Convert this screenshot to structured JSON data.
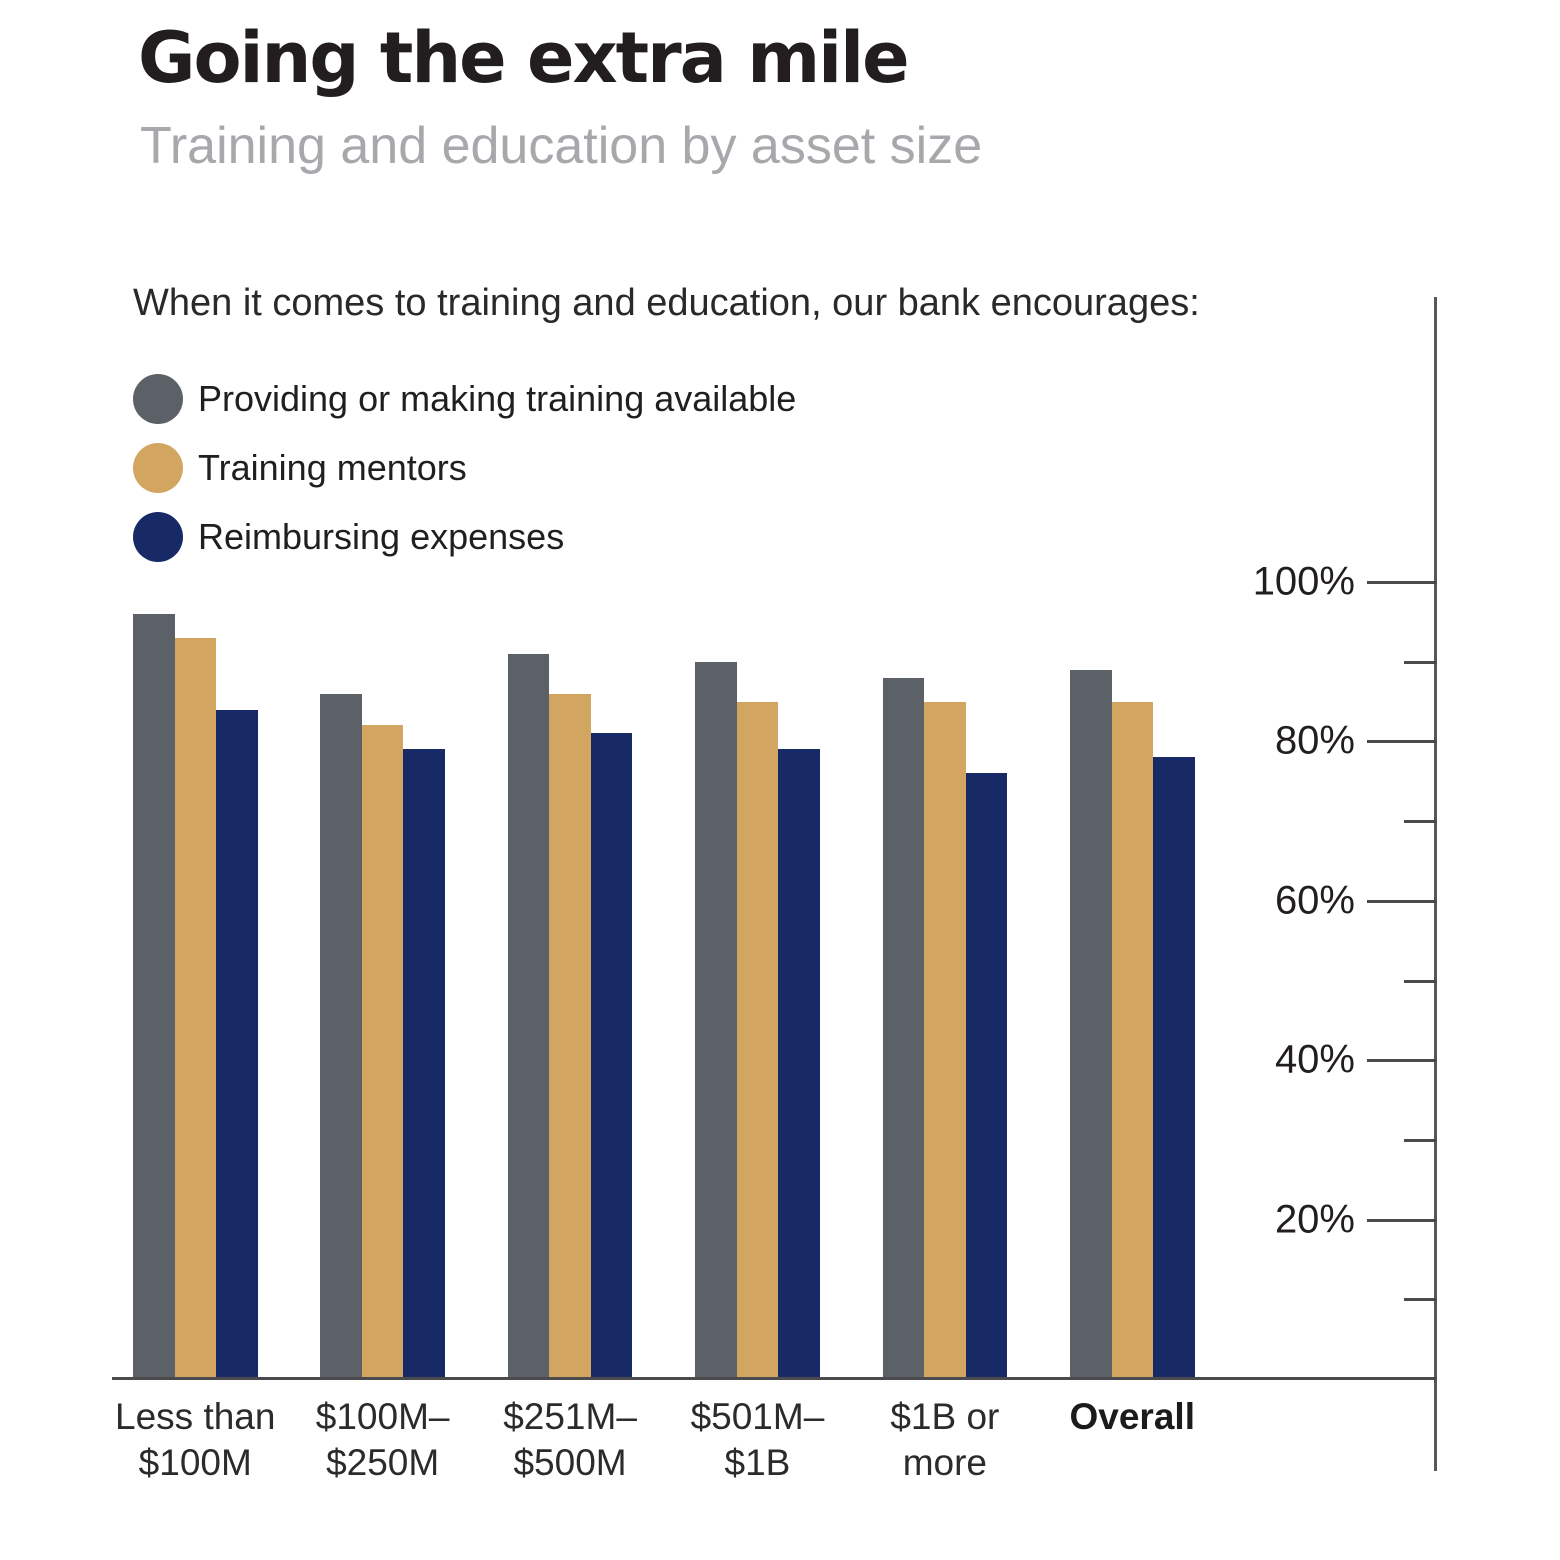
{
  "header": {
    "title": "Going the extra mile",
    "subtitle": "Training and education by asset size"
  },
  "intro": "When it comes to training and education, our bank encourages:",
  "legend": [
    {
      "label": "Providing or making training available",
      "color": "#5c6067"
    },
    {
      "label": "Training mentors",
      "color": "#d2a660"
    },
    {
      "label": "Reimbursing expenses",
      "color": "#172a66"
    }
  ],
  "colors": {
    "axis": "#57585a",
    "tick": "#4b4b4d",
    "tick_label": "#221e1f",
    "title": "#221e1f",
    "subtitle": "#a6a8ab"
  },
  "chart_data": {
    "type": "bar",
    "title": "Going the extra mile",
    "subtitle": "Training and education by asset size",
    "annotation": "When it comes to training and education, our bank encourages:",
    "categories": [
      "Less than $100M",
      "$100M–$250M",
      "$251M–$500M",
      "$501M–$1B",
      "$1B or more",
      "Overall"
    ],
    "category_lines": [
      [
        "Less than",
        "$100M"
      ],
      [
        "$100M–",
        "$250M"
      ],
      [
        "$251M–",
        "$500M"
      ],
      [
        "$501M–",
        "$1B"
      ],
      [
        "$1B or",
        "more"
      ],
      [
        "Overall"
      ]
    ],
    "category_bold": [
      false,
      false,
      false,
      false,
      false,
      true
    ],
    "series": [
      {
        "key": "providing",
        "name": "Providing or making training available",
        "color": "#5c6067",
        "values": [
          96,
          86,
          91,
          90,
          88,
          89
        ]
      },
      {
        "key": "mentors",
        "name": "Training mentors",
        "color": "#d2a660",
        "values": [
          93,
          82,
          86,
          85,
          85,
          85
        ]
      },
      {
        "key": "reimbursing",
        "name": "Reimbursing expenses",
        "color": "#172a66",
        "values": [
          84,
          79,
          81,
          79,
          76,
          78
        ]
      }
    ],
    "ylim": [
      0,
      100
    ],
    "yticks_major": [
      100,
      80,
      60,
      40,
      20
    ],
    "yticks_minor": [
      90,
      70,
      50,
      30,
      10
    ],
    "ytick_format": "{v}%",
    "axis_side": "right",
    "legend_position": "top-left",
    "grid": false
  }
}
